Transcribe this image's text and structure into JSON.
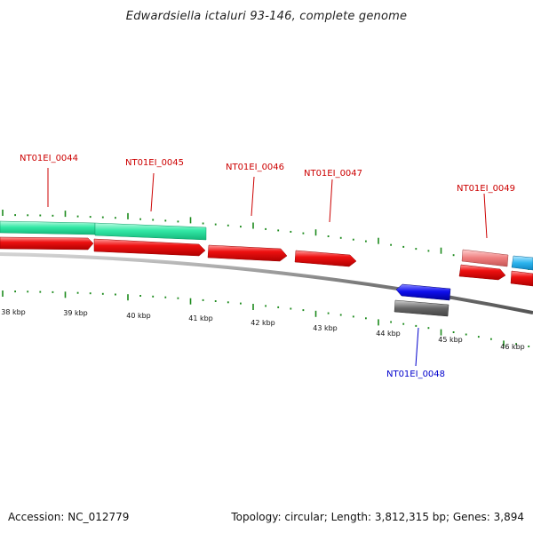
{
  "title": "Edwardsiella ictaluri 93-146, complete genome",
  "footer": {
    "accession": "Accession: NC_012779",
    "summary": "Topology: circular; Length: 3,812,315 bp; Genes: 3,894"
  },
  "colors": {
    "backbone": "#7a7a7a",
    "tick": "#1c8a1c",
    "forward_label": "#cc0000",
    "reverse_label": "#0000cc",
    "cds_red": "#ee1111",
    "teal": "#33e8a6",
    "pink": "#ee7e7e",
    "cyan": "#2cb4ee",
    "blue": "#1010ee",
    "gray": "#666666"
  },
  "kbp_labels": [
    "38 kbp",
    "39 kbp",
    "40 kbp",
    "41 kbp",
    "42 kbp",
    "43 kbp",
    "44 kbp",
    "45 kbp",
    "46 kbp"
  ],
  "gene_labels": [
    {
      "text": "NT01EI_0044",
      "strand": "forward"
    },
    {
      "text": "NT01EI_0045",
      "strand": "forward"
    },
    {
      "text": "NT01EI_0046",
      "strand": "forward"
    },
    {
      "text": "NT01EI_0047",
      "strand": "forward"
    },
    {
      "text": "NT01EI_0049",
      "strand": "forward"
    },
    {
      "text": "NT01EI_0048",
      "strand": "reverse"
    }
  ]
}
